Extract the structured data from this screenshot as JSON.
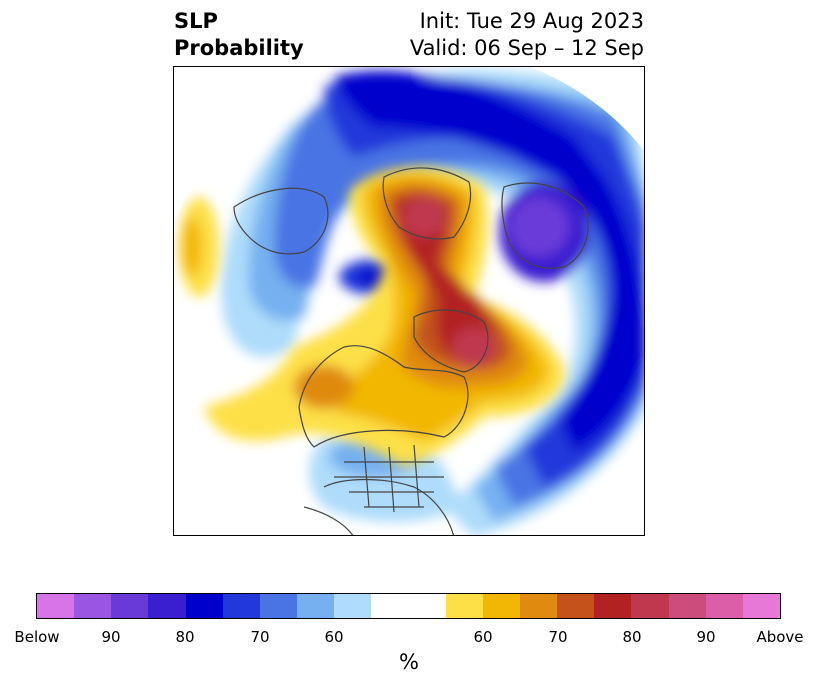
{
  "title": {
    "left_line1": "SLP",
    "left_line2": "Probability",
    "right_line1": "Init: Tue 29 Aug 2023",
    "right_line2": "Valid: 06 Sep – 12 Sep"
  },
  "colorbar": {
    "below_colors": [
      "#d774e8",
      "#9a56e0",
      "#6a3ad8",
      "#3a1fd0",
      "#0000cd",
      "#2238da",
      "#4a74e4",
      "#76b0f0",
      "#aedcfa"
    ],
    "neutral_color": "#ffffff",
    "above_colors": [
      "#fde047",
      "#f2b705",
      "#e08a10",
      "#c4521a",
      "#b22222",
      "#c0384e",
      "#cc4c7c",
      "#dc5ea8",
      "#e878d8"
    ],
    "tick_labels": [
      "Below",
      "90",
      "80",
      "70",
      "60",
      "60",
      "70",
      "80",
      "90",
      "Above"
    ],
    "unit_label": "%"
  }
}
